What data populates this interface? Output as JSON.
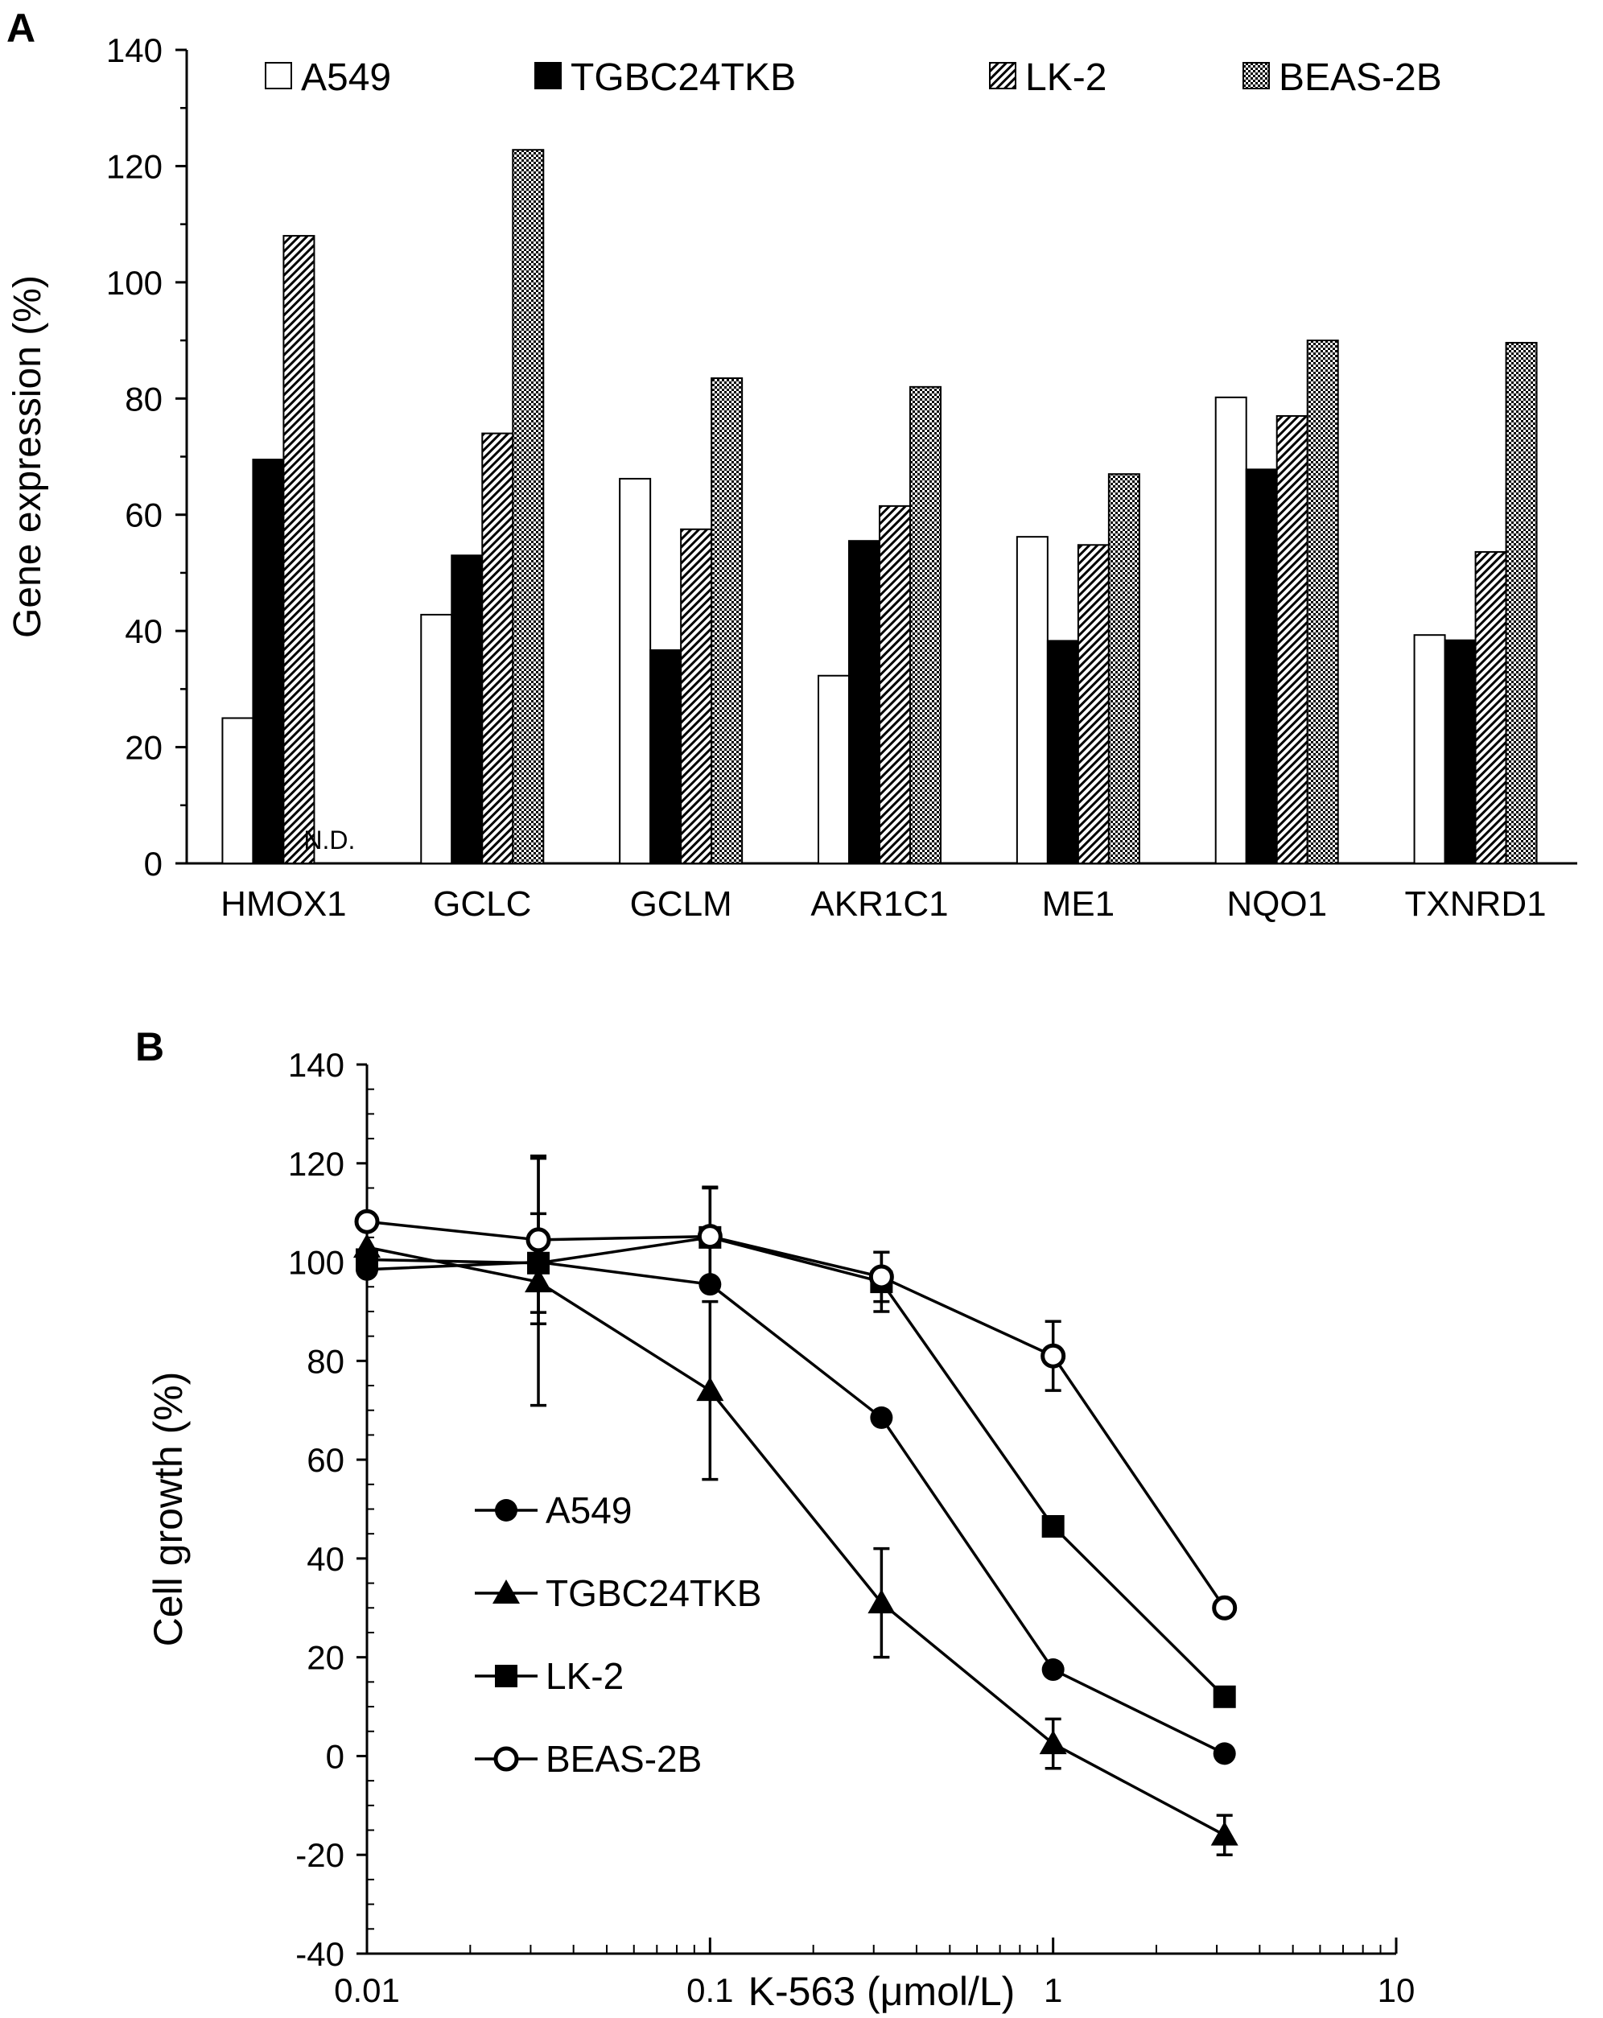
{
  "chart_data": [
    {
      "panel": "A",
      "type": "bar",
      "ylabel": "Gene expression (%)",
      "ylim": [
        0,
        140
      ],
      "yticks": [
        0,
        20,
        40,
        60,
        80,
        100,
        120,
        140
      ],
      "categories": [
        "HMOX1",
        "GCLC",
        "GCLM",
        "AKR1C1",
        "ME1",
        "NQO1",
        "TXNRD1"
      ],
      "legend_position": "top",
      "series": [
        {
          "name": "A549",
          "pattern": "white",
          "values": [
            25,
            42.8,
            66.2,
            32.3,
            56.2,
            80.2,
            39.3
          ]
        },
        {
          "name": "TGBC24TKB",
          "pattern": "black",
          "values": [
            69.5,
            53,
            36.7,
            55.5,
            38.3,
            67.8,
            38.4
          ]
        },
        {
          "name": "LK-2",
          "pattern": "diagonal-hatch",
          "values": [
            108,
            74,
            57.5,
            61.5,
            54.8,
            77,
            53.6
          ]
        },
        {
          "name": "BEAS-2B",
          "pattern": "checkered",
          "values": [
            null,
            122.8,
            83.5,
            82,
            67,
            90,
            89.6
          ]
        }
      ],
      "annotations": [
        {
          "category": "HMOX1",
          "series": "BEAS-2B",
          "text": "N.D."
        }
      ]
    },
    {
      "panel": "B",
      "type": "line",
      "xlabel": "K-563 (μmol/L)",
      "ylabel": "Cell growth (%)",
      "xscale": "log",
      "xlim": [
        0.01,
        10
      ],
      "xticks": [
        0.01,
        0.1,
        1,
        10
      ],
      "xticklabels": [
        "0.01",
        "0.1",
        "1",
        "10"
      ],
      "ylim": [
        -40,
        140
      ],
      "yticks": [
        -40,
        -20,
        0,
        20,
        40,
        60,
        80,
        100,
        120,
        140
      ],
      "legend_position": "lower-left",
      "x": [
        0.01,
        0.0316,
        0.1,
        0.316,
        1,
        3.16
      ],
      "series": [
        {
          "name": "A549",
          "marker": "filled-circle",
          "values": [
            98.5,
            100,
            95.5,
            68.5,
            17.5,
            0.5
          ],
          "errors": [
            null,
            null,
            null,
            null,
            null,
            null
          ]
        },
        {
          "name": "TGBC24TKB",
          "marker": "filled-triangle",
          "values": [
            103,
            96,
            74,
            31,
            2.5,
            -16
          ],
          "errors": [
            null,
            25,
            18,
            11,
            5,
            4
          ]
        },
        {
          "name": "LK-2",
          "marker": "filled-square",
          "values": [
            100.5,
            99.8,
            105,
            96,
            46.5,
            12
          ],
          "errors": [
            null,
            10,
            10,
            6,
            null,
            null
          ]
        },
        {
          "name": "BEAS-2B",
          "marker": "open-circle",
          "values": [
            108.2,
            104.5,
            105.2,
            97,
            81,
            30
          ],
          "errors": [
            null,
            17,
            10,
            5,
            7,
            null
          ]
        }
      ]
    }
  ],
  "labels": {
    "panel_a": "A",
    "panel_b": "B"
  }
}
